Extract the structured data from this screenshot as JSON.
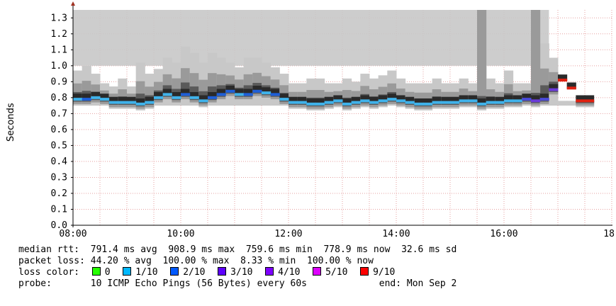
{
  "chart_data": {
    "type": "area",
    "ylabel": "Seconds",
    "ylim": [
      0,
      1.35
    ],
    "xlim": [
      "08:00",
      "18:00"
    ],
    "y_ticks": [
      "0.0",
      "0.1",
      "0.2",
      "0.3",
      "0.4",
      "0.5",
      "0.6",
      "0.7",
      "0.8",
      "0.9",
      "1.0",
      "1.1",
      "1.2",
      "1.3"
    ],
    "y_tick_values": [
      0,
      0.1,
      0.2,
      0.3,
      0.4,
      0.5,
      0.6,
      0.7,
      0.8,
      0.9,
      1.0,
      1.1,
      1.2,
      1.3
    ],
    "x_ticks": [
      "08:00",
      "10:00",
      "12:00",
      "14:00",
      "16:00",
      "18:"
    ],
    "x_tick_hours": [
      8,
      10,
      12,
      14,
      16,
      18
    ],
    "grid": true,
    "bin_minutes": 10,
    "start_time": "08:00",
    "series": [
      {
        "name": "median rtt",
        "values": [
          0.79,
          0.79,
          0.8,
          0.79,
          0.77,
          0.77,
          0.77,
          0.76,
          0.77,
          0.8,
          0.82,
          0.8,
          0.82,
          0.8,
          0.78,
          0.8,
          0.82,
          0.84,
          0.82,
          0.82,
          0.84,
          0.83,
          0.82,
          0.79,
          0.77,
          0.77,
          0.76,
          0.76,
          0.77,
          0.78,
          0.76,
          0.77,
          0.78,
          0.77,
          0.78,
          0.79,
          0.78,
          0.77,
          0.76,
          0.76,
          0.77,
          0.77,
          0.77,
          0.78,
          0.78,
          0.76,
          0.77,
          0.77,
          0.78,
          0.78,
          0.79,
          0.78,
          0.79,
          0.85,
          0.91,
          0.86,
          0.78,
          0.78
        ],
        "loss": [
          1,
          2,
          1,
          1,
          1,
          1,
          1,
          1,
          1,
          1,
          1,
          1,
          2,
          1,
          1,
          2,
          2,
          2,
          1,
          2,
          2,
          1,
          2,
          1,
          1,
          1,
          1,
          1,
          1,
          1,
          1,
          1,
          1,
          1,
          1,
          1,
          1,
          1,
          1,
          1,
          1,
          1,
          1,
          1,
          1,
          1,
          1,
          1,
          1,
          1,
          3,
          4,
          3,
          4,
          9,
          9,
          9,
          9
        ]
      },
      {
        "name": "max rtt",
        "values": [
          0.97,
          1.0,
          0.95,
          0.89,
          0.87,
          0.92,
          0.87,
          1.02,
          0.95,
          0.98,
          1.05,
          1.02,
          1.12,
          1.08,
          1.02,
          1.08,
          1.05,
          1.02,
          0.99,
          1.05,
          1.05,
          1.02,
          0.99,
          0.95,
          0.89,
          0.89,
          0.92,
          0.92,
          0.89,
          0.89,
          0.92,
          0.9,
          0.95,
          0.92,
          0.94,
          0.97,
          0.92,
          0.89,
          0.89,
          0.89,
          0.92,
          0.89,
          0.89,
          0.92,
          0.89,
          1.37,
          0.92,
          0.89,
          0.97,
          0.89,
          0.89,
          1.37,
          1.14,
          1.05,
          0.78,
          0.78,
          0.78,
          0.78
        ]
      }
    ]
  },
  "legend": {
    "median_rtt": {
      "label": "median rtt:",
      "avg": "791.4 ms avg",
      "max": "908.9 ms max",
      "min": "759.6 ms min",
      "now": "778.9 ms now",
      "sd": "32.6 ms sd"
    },
    "packet_loss": {
      "label": "packet loss:",
      "avg": "44.20 % avg",
      "max": "100.00 % max",
      "min": "8.33 % min",
      "now": "100.00 % now"
    },
    "loss_color": {
      "label": "loss color:",
      "items": [
        {
          "label": "0",
          "color": "#26ff00"
        },
        {
          "label": "1/10",
          "color": "#00b8ff"
        },
        {
          "label": "2/10",
          "color": "#0059ff"
        },
        {
          "label": "3/10",
          "color": "#5e00ff"
        },
        {
          "label": "4/10",
          "color": "#7e00ff"
        },
        {
          "label": "5/10",
          "color": "#dd00ff"
        },
        {
          "label": "9/10",
          "color": "#ff0000"
        }
      ]
    },
    "probe": {
      "label": "probe:",
      "text": "10 ICMP Echo Pings (56 Bytes) every 60s",
      "end": "end: Mon Sep 2"
    }
  },
  "colors": {
    "smoke_light": "#c8c8c8",
    "smoke_mid": "#9a9a9a",
    "smoke_dark": "#5a5a5a",
    "smoke_darkest": "#2a2a2a",
    "grid": "#e6a0a0",
    "axis": "#000000"
  }
}
